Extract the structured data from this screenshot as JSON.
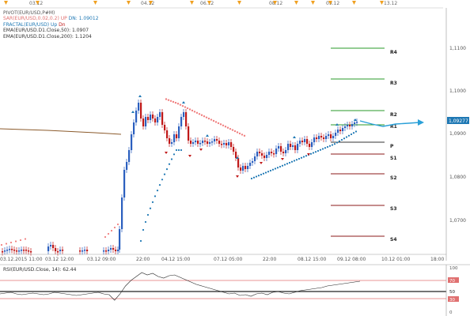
{
  "top_dates": [
    "03.12",
    "04.12",
    "06.12",
    "08.12",
    "09.12",
    "13.12"
  ],
  "legend": {
    "pivot": "PIVOT(EUR/USD,P#M)",
    "sar_name": "SAR(EUR/USD,0.02,0.2)",
    "sar_up": "UP",
    "sar_dn": "DN: 1.09012",
    "fractal_name": "FRACTAL(EUR/USD)",
    "fractal_up": "Up",
    "fractal_dn": "Dn",
    "ema50": "EMA(EUR/USD.D1.Close,50): 1.0907",
    "ema200": "EMA(EUR/USD.D1.Close,200): 1.1204"
  },
  "pivot_labels": [
    "R4",
    "R3",
    "R2",
    "R1",
    "P",
    "S1",
    "S2",
    "S3",
    "S4"
  ],
  "price_axis": [
    "1,1100",
    "1,1000",
    "1,0900",
    "1,0800",
    "1,0700"
  ],
  "current_price": "1,09277",
  "time_axis": [
    "03.12.2015 11:00",
    "03.12 12:00",
    "03.12 09:00",
    "22:00",
    "04.12 15:00",
    "07.12 05:00",
    "22:00",
    "08.12 15:00",
    "09.12 08:00",
    "10.12 01:00",
    "18:00"
  ],
  "rsi": {
    "label": "RSI(EUR/USD.Close, 14): 62.44",
    "axis": [
      "100",
      "70",
      "50",
      "30",
      "0"
    ]
  },
  "colors": {
    "up_candle": "#2b5fbf",
    "down_candle": "#c01818",
    "sar": "#f08080",
    "fractal": "#1e78b4",
    "r_level": "#2a9a2a",
    "p_level": "#333333",
    "s_level": "#8b1a1a",
    "forecast": "#2aa0d8"
  }
}
